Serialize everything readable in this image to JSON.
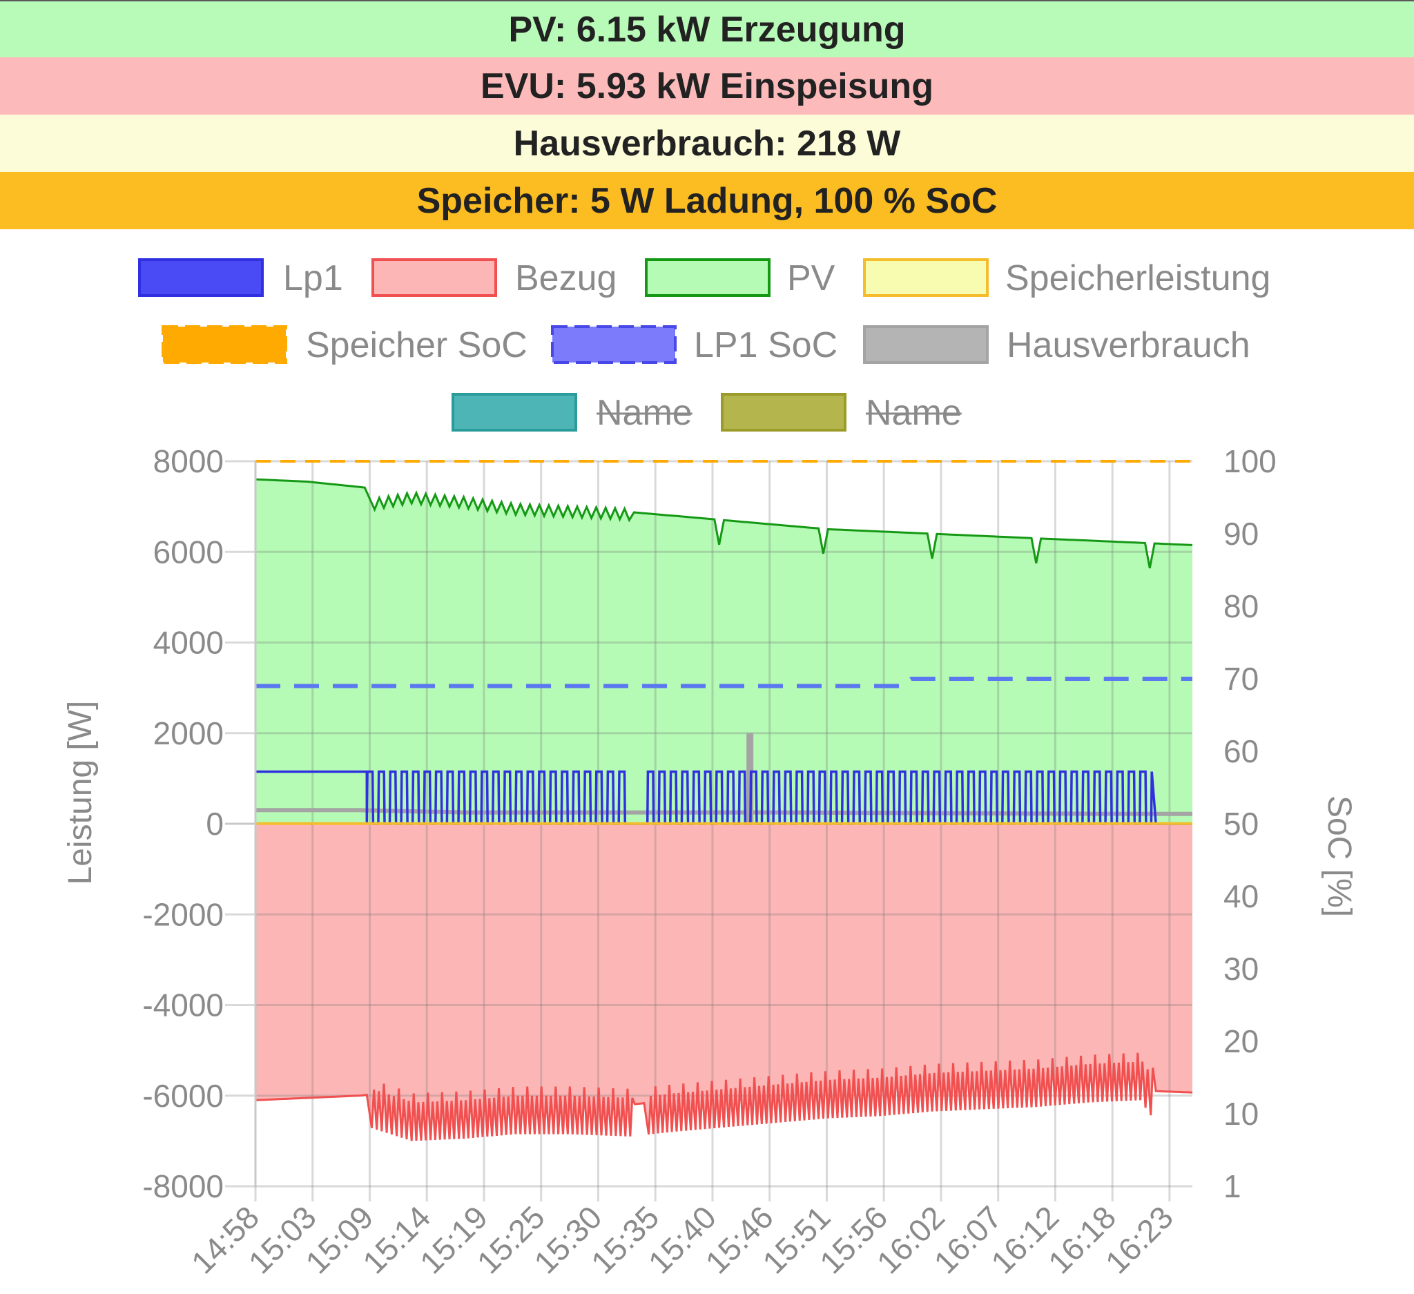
{
  "status": {
    "pv": {
      "label": "PV: 6.15 kW Erzeugung",
      "bg": "#b8fbb8"
    },
    "evu": {
      "label": "EVU: 5.93 kW Einspeisung",
      "bg": "#fdbaba"
    },
    "haus": {
      "label": "Hausverbrauch: 218 W",
      "bg": "#fcfcd9"
    },
    "speicher": {
      "label": "Speicher: 5 W Ladung, 100 % SoC",
      "bg": "#fcbd23"
    }
  },
  "chart_data": {
    "type": "line",
    "legend": [
      {
        "name": "Lp1",
        "fill": "#4b4bf5",
        "stroke": "#3030e0",
        "style": "solid",
        "hidden": false
      },
      {
        "name": "Bezug",
        "fill": "#fdb6b6",
        "stroke": "#f05050",
        "style": "solid",
        "hidden": false
      },
      {
        "name": "PV",
        "fill": "#b5fab5",
        "stroke": "#159915",
        "style": "solid",
        "hidden": false
      },
      {
        "name": "Speicherleistung",
        "fill": "#f8fcb0",
        "stroke": "#f5bc2b",
        "style": "solid",
        "hidden": false
      },
      {
        "name": "Speicher SoC",
        "fill": "#ffaa00",
        "stroke": "#ffaa00",
        "style": "dashed",
        "hidden": false
      },
      {
        "name": "LP1 SoC",
        "fill": "#7b7bfb",
        "stroke": "#4848e8",
        "style": "dashed",
        "hidden": false
      },
      {
        "name": "Hausverbrauch",
        "fill": "#b4b4b4",
        "stroke": "#a4a4a4",
        "style": "solid",
        "hidden": false
      },
      {
        "name": "Name",
        "fill": "#4db5b5",
        "stroke": "#2a9b9b",
        "style": "solid",
        "hidden": true
      },
      {
        "name": "Name",
        "fill": "#b5b54d",
        "stroke": "#9b9b2a",
        "style": "solid",
        "hidden": true
      }
    ],
    "x_ticks": [
      "14:58",
      "15:03",
      "15:09",
      "15:14",
      "15:19",
      "15:25",
      "15:30",
      "15:35",
      "15:40",
      "15:46",
      "15:51",
      "15:56",
      "16:02",
      "16:07",
      "16:12",
      "16:18",
      "16:23"
    ],
    "x_range_minutes": [
      0,
      90
    ],
    "y_left": {
      "label": "Leistung [W]",
      "min": -8000,
      "max": 8000,
      "ticks": [
        8000,
        6000,
        4000,
        2000,
        0,
        -2000,
        -4000,
        -6000,
        -8000
      ]
    },
    "y_right": {
      "label": "SoC [%]",
      "ticks": [
        "100",
        "90",
        "80",
        "70",
        "60",
        "50",
        "40",
        "30",
        "20",
        "10",
        "1"
      ]
    },
    "series": [
      {
        "name": "PV",
        "points": [
          [
            0,
            7600
          ],
          [
            5,
            7550
          ],
          [
            10.5,
            7420
          ],
          [
            11,
            7100
          ],
          [
            15,
            7250
          ],
          [
            20,
            7150
          ],
          [
            25,
            7000
          ],
          [
            30,
            6950
          ],
          [
            35,
            6900
          ],
          [
            40,
            6800
          ],
          [
            45,
            6700
          ],
          [
            50,
            6600
          ],
          [
            55,
            6500
          ],
          [
            60,
            6450
          ],
          [
            65,
            6400
          ],
          [
            70,
            6350
          ],
          [
            75,
            6300
          ],
          [
            80,
            6250
          ],
          [
            85,
            6200
          ],
          [
            90,
            6150
          ]
        ]
      },
      {
        "name": "Bezug",
        "points": [
          [
            0,
            -6100
          ],
          [
            5,
            -6050
          ],
          [
            10,
            -6000
          ],
          [
            10.7,
            -5980
          ],
          [
            15,
            -6300
          ],
          [
            20,
            -6250
          ],
          [
            25,
            -6150
          ],
          [
            30,
            -6150
          ],
          [
            36,
            -6200
          ],
          [
            40,
            -6100
          ],
          [
            45,
            -6000
          ],
          [
            50,
            -5900
          ],
          [
            55,
            -5800
          ],
          [
            60,
            -5750
          ],
          [
            65,
            -5650
          ],
          [
            70,
            -5600
          ],
          [
            75,
            -5550
          ],
          [
            80,
            -5450
          ],
          [
            85,
            -5400
          ],
          [
            86.5,
            -5900
          ],
          [
            90,
            -5930
          ]
        ]
      },
      {
        "name": "Lp1",
        "points": [
          [
            0,
            1150
          ],
          [
            10.7,
            1150
          ],
          [
            15,
            600
          ],
          [
            20,
            600
          ],
          [
            25,
            600
          ],
          [
            30,
            600
          ],
          [
            35,
            600
          ],
          [
            40,
            600
          ],
          [
            45,
            600
          ],
          [
            50,
            600
          ],
          [
            55,
            600
          ],
          [
            60,
            600
          ],
          [
            65,
            600
          ],
          [
            70,
            600
          ],
          [
            75,
            600
          ],
          [
            80,
            600
          ],
          [
            85,
            600
          ],
          [
            86.5,
            0
          ],
          [
            90,
            0
          ]
        ]
      },
      {
        "name": "Hausverbrauch",
        "points": [
          [
            0,
            300
          ],
          [
            10,
            300
          ],
          [
            20,
            250
          ],
          [
            30,
            250
          ],
          [
            40,
            250
          ],
          [
            50,
            250
          ],
          [
            60,
            240
          ],
          [
            70,
            230
          ],
          [
            80,
            220
          ],
          [
            90,
            218
          ]
        ]
      },
      {
        "name": "Speicherleistung",
        "points": [
          [
            0,
            5
          ],
          [
            90,
            5
          ]
        ]
      },
      {
        "name": "Speicher SoC",
        "points": [
          [
            0,
            100
          ],
          [
            90,
            100
          ]
        ]
      },
      {
        "name": "LP1 SoC",
        "points": [
          [
            0,
            69
          ],
          [
            62,
            69
          ],
          [
            63,
            70
          ],
          [
            90,
            70
          ]
        ]
      }
    ]
  }
}
